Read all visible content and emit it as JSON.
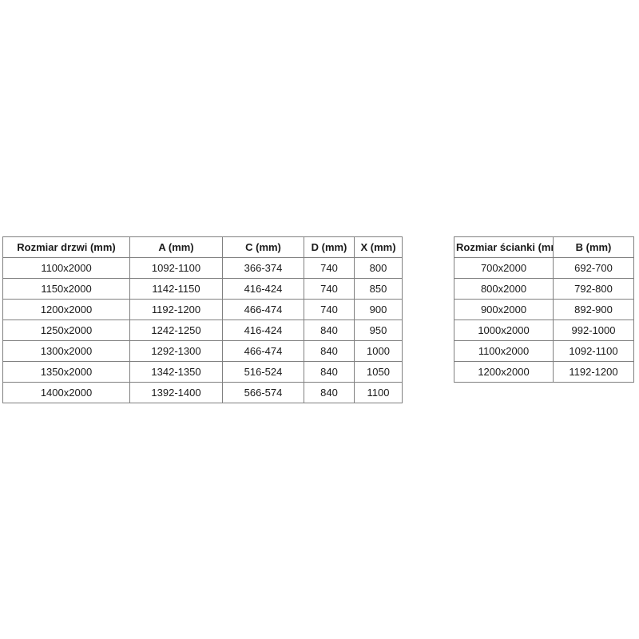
{
  "page": {
    "background_color": "#ffffff",
    "border_color": "#808080",
    "text_color": "#1a1a1a"
  },
  "tables": [
    {
      "name": "door-size-table",
      "headers": [
        "Rozmiar drzwi (mm)",
        "A (mm)",
        "C (mm)",
        "D (mm)",
        "X (mm)"
      ],
      "rows": [
        [
          "1100x2000",
          "1092-1100",
          "366-374",
          "740",
          "800"
        ],
        [
          "1150x2000",
          "1142-1150",
          "416-424",
          "740",
          "850"
        ],
        [
          "1200x2000",
          "1192-1200",
          "466-474",
          "740",
          "900"
        ],
        [
          "1250x2000",
          "1242-1250",
          "416-424",
          "840",
          "950"
        ],
        [
          "1300x2000",
          "1292-1300",
          "466-474",
          "840",
          "1000"
        ],
        [
          "1350x2000",
          "1342-1350",
          "516-524",
          "840",
          "1050"
        ],
        [
          "1400x2000",
          "1392-1400",
          "566-574",
          "840",
          "1100"
        ]
      ]
    },
    {
      "name": "wall-size-table",
      "headers": [
        "Rozmiar ścianki (mm)",
        "B (mm)"
      ],
      "rows": [
        [
          "700x2000",
          "692-700"
        ],
        [
          "800x2000",
          "792-800"
        ],
        [
          "900x2000",
          "892-900"
        ],
        [
          "1000x2000",
          "992-1000"
        ],
        [
          "1100x2000",
          "1092-1100"
        ],
        [
          "1200x2000",
          "1192-1200"
        ]
      ]
    }
  ]
}
